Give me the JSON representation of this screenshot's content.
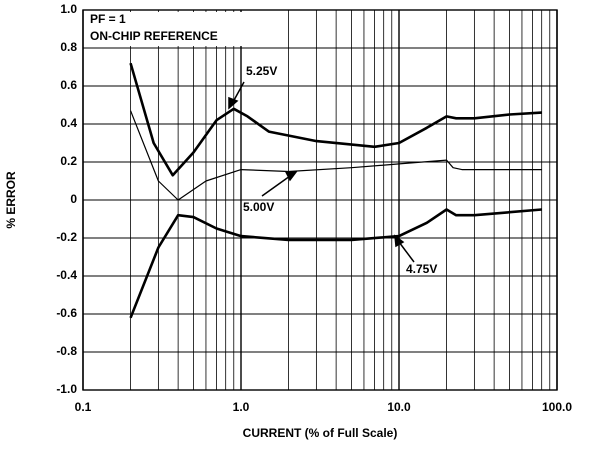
{
  "chart_data": {
    "type": "line",
    "xlabel": "CURRENT (% of Full Scale)",
    "ylabel": "% ERROR",
    "annotations": [
      "PF = 1",
      "ON-CHIP REFERENCE"
    ],
    "x_log": true,
    "grid": true,
    "color": "#000000",
    "xlim": [
      0.1,
      100
    ],
    "xticks": [
      0.1,
      {
        "value": 1,
        "label": "1.0"
      },
      {
        "value": 10,
        "label": "10.0"
      },
      {
        "value": 100,
        "label": "100.0"
      }
    ],
    "ylim": [
      -1,
      1
    ],
    "yticks": [
      {
        "value": -1,
        "label": "-1.0"
      },
      -0.8,
      -0.6,
      -0.4,
      -0.2,
      0,
      0.2,
      0.4,
      0.6,
      0.8,
      {
        "value": 1,
        "label": "1.0"
      }
    ],
    "series": [
      {
        "name": "5.25V",
        "line_width": 2.6,
        "x": [
          0.2,
          0.28,
          0.37,
          0.5,
          0.7,
          0.9,
          1.1,
          1.5,
          3,
          7,
          10,
          15,
          20,
          23,
          30,
          50,
          80
        ],
        "values": [
          0.72,
          0.3,
          0.13,
          0.25,
          0.42,
          0.48,
          0.44,
          0.36,
          0.31,
          0.28,
          0.3,
          0.38,
          0.44,
          0.43,
          0.43,
          0.45,
          0.46
        ]
      },
      {
        "name": "5.00V",
        "line_width": 1.2,
        "x": [
          0.2,
          0.3,
          0.4,
          0.6,
          1.0,
          2,
          5,
          10,
          20,
          22,
          25,
          80
        ],
        "values": [
          0.47,
          0.1,
          0.0,
          0.1,
          0.16,
          0.15,
          0.17,
          0.19,
          0.21,
          0.17,
          0.16,
          0.16
        ]
      },
      {
        "name": "4.75V",
        "line_width": 2.6,
        "x": [
          0.2,
          0.3,
          0.4,
          0.5,
          0.7,
          1,
          2,
          5,
          10,
          15,
          20,
          23,
          30,
          80
        ],
        "values": [
          -0.62,
          -0.25,
          -0.08,
          -0.09,
          -0.15,
          -0.19,
          -0.21,
          -0.21,
          -0.19,
          -0.12,
          -0.05,
          -0.08,
          -0.08,
          -0.05
        ]
      }
    ]
  }
}
